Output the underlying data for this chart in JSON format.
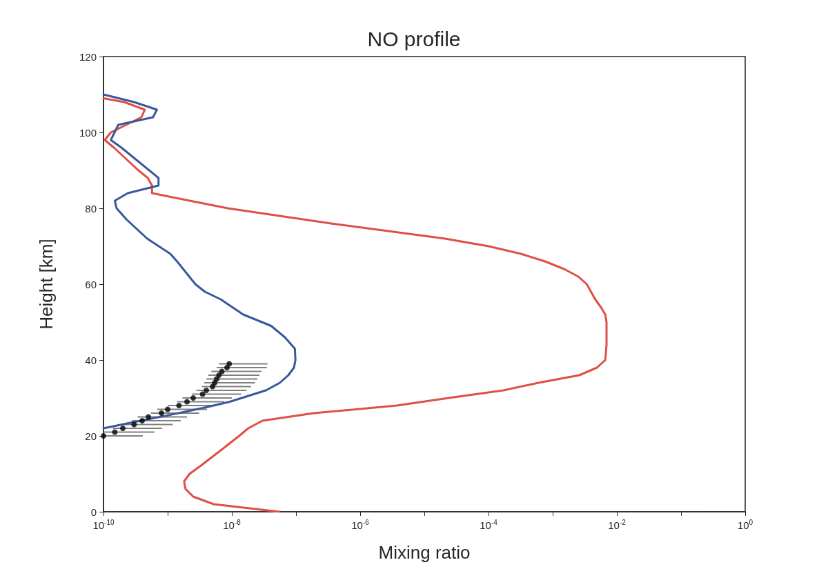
{
  "chart_data": {
    "type": "line",
    "title": "NO profile",
    "xlabel": "Mixing ratio",
    "ylabel": "Height [km]",
    "log": "x",
    "grid": false,
    "line_style": "solid",
    "marker": "none",
    "xlim": [
      1e-10,
      1
    ],
    "ylim": [
      0,
      120
    ],
    "xticks": [
      {
        "value": 1e-10,
        "label": "10$^{-10}$"
      },
      {
        "value": 1e-09,
        "label": null
      },
      {
        "value": 1e-08,
        "label": "10$^{-8}$"
      },
      {
        "value": 1e-07,
        "label": null
      },
      {
        "value": 1e-06,
        "label": "10$^{-6}$"
      },
      {
        "value": 1e-05,
        "label": null
      },
      {
        "value": 0.0001,
        "label": "10$^{-4}$"
      },
      {
        "value": 0.001,
        "label": null
      },
      {
        "value": 0.01,
        "label": "10$^{-2}$"
      },
      {
        "value": 0.1,
        "label": null
      },
      {
        "value": 1,
        "label": "10$^{0}$"
      }
    ],
    "yticks": [
      0,
      20,
      40,
      60,
      80,
      100,
      120
    ],
    "series": [
      {
        "color": "#e04e45",
        "x": [
          5.5e-08,
          5.2e-09,
          2.5e-09,
          1.9e-09,
          1.8e-09,
          2.2e-09,
          3.2e-09,
          6.5e-09,
          1.3e-08,
          1.8e-08,
          3e-08,
          1.9e-07,
          3.7e-06,
          2.4e-05,
          0.00017,
          0.0006,
          0.0026,
          0.0049,
          0.0066,
          0.0069,
          0.0069,
          0.0066,
          0.0056,
          0.0046,
          0.0034,
          0.0025,
          0.0015,
          0.00076,
          0.00032,
          0.0001,
          2.1e-05,
          3.5e-07,
          8.7e-09,
          2.2e-09,
          5.7e-10,
          5.7e-10,
          4.9e-10,
          3.5e-10,
          1.45e-10,
          1.05e-10,
          1.3e-10,
          3.9e-10,
          4.4e-10,
          2.1e-10,
          1e-10
        ],
        "values": [
          0,
          2,
          4,
          6,
          8,
          10,
          12,
          16,
          20,
          22,
          24,
          26,
          28,
          30,
          32,
          34,
          36,
          38,
          40,
          44,
          50,
          52,
          54,
          56,
          60,
          62,
          64,
          66,
          68,
          70,
          72,
          76,
          80,
          82,
          84,
          86,
          88,
          90,
          96,
          98,
          100,
          104,
          106,
          108,
          109
        ]
      },
      {
        "color": "#38589c",
        "x": [
          1e-10,
          2.7e-10,
          9.3e-10,
          4.1e-09,
          9.3e-09,
          3.4e-08,
          5.6e-08,
          7.6e-08,
          9.3e-08,
          9.8e-08,
          9.6e-08,
          6.7e-08,
          4.1e-08,
          1.5e-08,
          6.7e-09,
          3.8e-09,
          2.7e-09,
          1.4e-09,
          1.1e-09,
          4.8e-10,
          2.3e-10,
          1.6e-10,
          1.5e-10,
          2.4e-10,
          7.2e-10,
          7.2e-10,
          1.9e-10,
          1.3e-10,
          1.7e-10,
          5.9e-10,
          6.8e-10,
          3e-10,
          1e-10
        ],
        "values": [
          22,
          23.5,
          25.3,
          27.6,
          29,
          32,
          34,
          36,
          38,
          40,
          43,
          46,
          49,
          52,
          56,
          58,
          60,
          66,
          68,
          72,
          77,
          80,
          82,
          84,
          86,
          88,
          96,
          98,
          102,
          104,
          106,
          108,
          110
        ]
      },
      {
        "type": "scatter",
        "color": "#000000",
        "marker": "circle",
        "x": [
          1e-10,
          1.5e-10,
          2e-10,
          3e-10,
          4e-10,
          5e-10,
          8e-10,
          1e-09,
          1.5e-09,
          2e-09,
          2.5e-09,
          3.5e-09,
          4e-09,
          5e-09,
          5.4e-09,
          5.8e-09,
          6.3e-09,
          7e-09,
          8.4e-09,
          9.1e-09
        ],
        "values": [
          20,
          21,
          22,
          23,
          24,
          25,
          26,
          27,
          28,
          29,
          30,
          31,
          32,
          33,
          34,
          35,
          36,
          37,
          38,
          39
        ],
        "xerrors": [
          [
            1e-10,
            4.1e-10
          ],
          [
            1e-10,
            6.2e-10
          ],
          [
            1.4e-10,
            8.2e-10
          ],
          [
            2.1e-10,
            1.2e-09
          ],
          [
            2.8e-10,
            1.6e-09
          ],
          [
            3.4e-10,
            2e-09
          ],
          [
            5.5e-10,
            3.1e-09
          ],
          [
            6.9e-10,
            4.1e-09
          ],
          [
            1e-09,
            5.5e-09
          ],
          [
            1.4e-09,
            7.6e-09
          ],
          [
            1.7e-09,
            1e-08
          ],
          [
            2.4e-09,
            1.4e-08
          ],
          [
            2.8e-09,
            1.7e-08
          ],
          [
            3.4e-09,
            2e-08
          ],
          [
            3.7e-09,
            2.3e-08
          ],
          [
            4e-09,
            2.5e-08
          ],
          [
            4.3e-09,
            2.7e-08
          ],
          [
            4.8e-09,
            2.9e-08
          ],
          [
            5.8e-09,
            3.5e-08
          ],
          [
            6.3e-09,
            3.6e-08
          ]
        ]
      }
    ]
  }
}
